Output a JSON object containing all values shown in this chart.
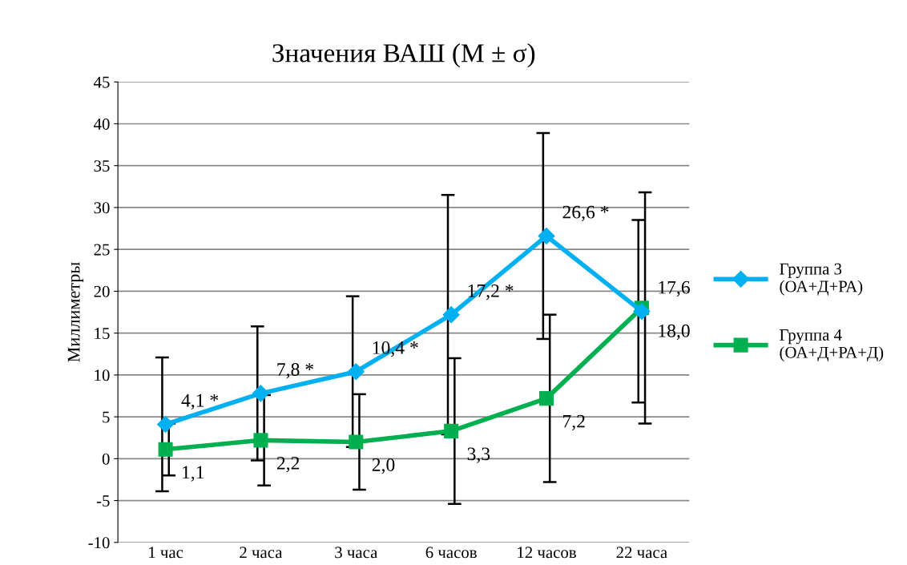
{
  "chart_data": {
    "type": "line",
    "title": "Значения ВАШ (M ± σ)",
    "ylabel": "Миллиметры",
    "categories": [
      "1 час",
      "2 часа",
      "3 часа",
      "6 часов",
      "12 часов",
      "22 часа"
    ],
    "series": [
      {
        "name": "Группа 3\n(ОА+Д+РА)",
        "color": "#00b0f0",
        "marker": "diamond",
        "values": [
          4.1,
          7.8,
          10.4,
          17.2,
          26.6,
          17.6
        ],
        "errors": [
          8.0,
          8.0,
          9.0,
          14.3,
          12.3,
          10.9
        ],
        "value_labels": [
          "4,1 *",
          "7,8 *",
          "10,4 *",
          "17,2 *",
          "26,6 *",
          "17,6"
        ]
      },
      {
        "name": "Группа 4\n(ОА+Д+РА+Д)",
        "color": "#00b050",
        "marker": "square",
        "values": [
          1.1,
          2.2,
          2.0,
          3.3,
          7.2,
          18.0
        ],
        "errors": [
          3.1,
          5.4,
          5.7,
          8.7,
          10.0,
          13.8
        ],
        "value_labels": [
          "1,1",
          "2,2",
          "2,0",
          "3,3",
          "7,2",
          "18,0"
        ]
      }
    ],
    "ylim": [
      -10,
      45
    ],
    "yticks": [
      -10,
      -5,
      0,
      5,
      10,
      15,
      20,
      25,
      30,
      35,
      40,
      45
    ],
    "grid": "y",
    "legend": "right",
    "line_style": "solid"
  }
}
